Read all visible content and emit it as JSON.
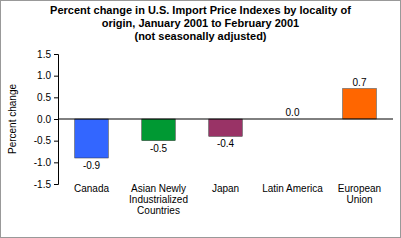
{
  "chart_data": {
    "type": "bar",
    "title": "Percent change in U.S. Import Price Indexes by locality of origin, January 2001 to February 2001",
    "subtitle": "(not seasonally adjusted)",
    "y_label": "Percent change",
    "categories": [
      "Canada",
      "Asian Newly Industrialized Countries",
      "Japan",
      "Latin America",
      "European Union"
    ],
    "values": [
      -0.9,
      -0.5,
      -0.4,
      0.0,
      0.7
    ],
    "value_labels": [
      "-0.9",
      "-0.5",
      "-0.4",
      "0.0",
      "0.7"
    ],
    "colors": [
      "#3366ff",
      "#009933",
      "#993366",
      "#33cccc",
      "#ff6600"
    ],
    "ylim": [
      -1.5,
      1.5
    ],
    "yticks": [
      -1.5,
      {
        "value": -1.0,
        "label": "-1.0"
      },
      -0.5,
      {
        "value": 0.0,
        "label": "0.0"
      },
      0.5,
      {
        "value": 1.0,
        "label": "1.0"
      },
      1.5
    ],
    "grid": false,
    "data_labels": true
  }
}
